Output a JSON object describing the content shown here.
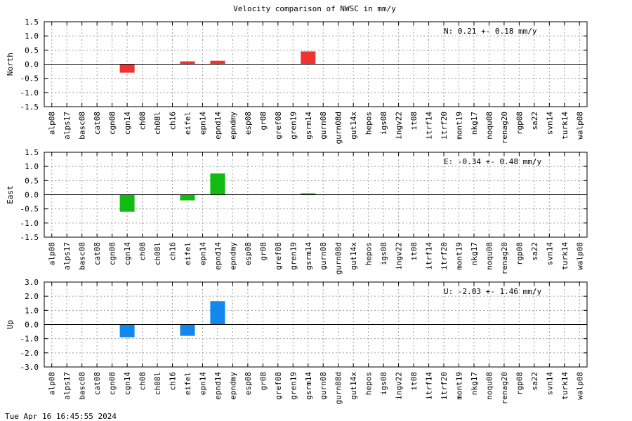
{
  "title": "Velocity comparison of NWSC in mm/y",
  "date_stamp": "Tue Apr 16 16:45:55 2024",
  "chart_data": {
    "type": "bar",
    "categories": [
      "alp08",
      "alps17",
      "basc08",
      "cat08",
      "cgn08",
      "cgn14",
      "ch08",
      "ch08l",
      "ch16",
      "eifel",
      "epn14",
      "epnd14",
      "epndmy",
      "esp08",
      "gr08",
      "gref08",
      "gren19",
      "gsrm14",
      "gurn08",
      "gurn08d",
      "gut14x",
      "hepos",
      "igs08",
      "ingv22",
      "it08",
      "itrf14",
      "itrf20",
      "mont19",
      "nkg17",
      "noqu08",
      "renag20",
      "rgp08",
      "sa22",
      "svn14",
      "turk14",
      "walp08"
    ],
    "panels": [
      {
        "name": "North",
        "ylabel": "North",
        "stat": "N:   0.21 +-  0.18 mm/y",
        "color": "#ee3333",
        "ylim": [
          -1.5,
          1.5
        ],
        "yticks": [
          -1.5,
          -1.0,
          -0.5,
          0.0,
          0.5,
          1.0,
          1.5
        ],
        "ytick_labels": [
          "-1.5",
          "-1.0",
          "-0.5",
          "0.0",
          "0.5",
          "1.0",
          "1.5"
        ],
        "values": [
          0,
          0,
          0,
          0,
          0,
          -0.3,
          0,
          0,
          0,
          0.1,
          0,
          0.12,
          0,
          0,
          0,
          0,
          0,
          0.45,
          0,
          0,
          0,
          0,
          0,
          0,
          0,
          0,
          0,
          0,
          0,
          0,
          0,
          0,
          0,
          0,
          0,
          0
        ]
      },
      {
        "name": "East",
        "ylabel": "East",
        "stat": "E:  -0.34 +-  0.48 mm/y",
        "color": "#11bb11",
        "ylim": [
          -1.5,
          1.5
        ],
        "yticks": [
          -1.5,
          -1.0,
          -0.5,
          0.0,
          0.5,
          1.0,
          1.5
        ],
        "ytick_labels": [
          "-1.5",
          "-1.0",
          "-0.5",
          "0.0",
          "0.5",
          "1.0",
          "1.5"
        ],
        "values": [
          0,
          0,
          0,
          0,
          0,
          -0.6,
          0,
          0,
          0,
          -0.2,
          0,
          0.75,
          0,
          0,
          0,
          0,
          0,
          0.05,
          0,
          0,
          0,
          0,
          0,
          0,
          0,
          0,
          0,
          0,
          0,
          0,
          0,
          0,
          0,
          0,
          0,
          0
        ]
      },
      {
        "name": "Up",
        "ylabel": "Up",
        "stat": "U:  -2.03 +-  1.46 mm/y",
        "color": "#1188ee",
        "ylim": [
          -3.0,
          3.0
        ],
        "yticks": [
          -3.0,
          -2.0,
          -1.0,
          0.0,
          1.0,
          2.0,
          3.0
        ],
        "ytick_labels": [
          "-3.0",
          "-2.0",
          "-1.0",
          "0.0",
          "1.0",
          "2.0",
          "3.0"
        ],
        "values": [
          0,
          0,
          0,
          0,
          0,
          -0.9,
          0,
          0,
          0,
          -0.8,
          0,
          1.65,
          0,
          0,
          0,
          0,
          0,
          0,
          0,
          0,
          0,
          0,
          0,
          0,
          0,
          0,
          0,
          0,
          0,
          0,
          0,
          0,
          0,
          0,
          0,
          0
        ]
      }
    ],
    "grid": true,
    "legend": "none"
  }
}
